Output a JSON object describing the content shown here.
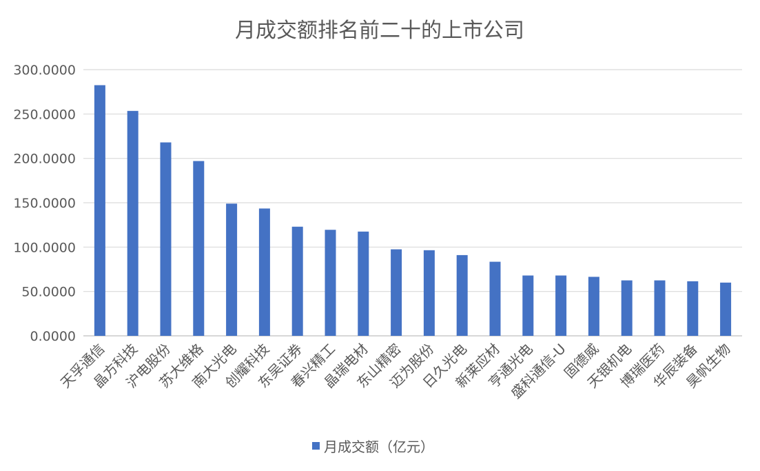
{
  "chart_data": {
    "type": "bar",
    "title": "月成交额排名前二十的上市公司",
    "xlabel": "",
    "ylabel": "",
    "ylim": [
      0,
      300
    ],
    "yticks": [
      "0.0000",
      "50.0000",
      "100.0000",
      "150.0000",
      "200.0000",
      "250.0000",
      "300.0000"
    ],
    "grid": true,
    "legend_position": "bottom",
    "categories": [
      "天孚通信",
      "晶方科技",
      "沪电股份",
      "苏大维格",
      "南大光电",
      "创耀科技",
      "东吴证券",
      "春兴精工",
      "晶瑞电材",
      "东山精密",
      "迈为股份",
      "日久光电",
      "新莱应材",
      "亨通光电",
      "盛科通信-U",
      "固德威",
      "天银机电",
      "博瑞医药",
      "华辰装备",
      "昊帆生物"
    ],
    "series": [
      {
        "name": "月成交额（亿元）",
        "color": "#4472c4",
        "values": [
          282.5,
          253.5,
          218.0,
          197.0,
          149.0,
          143.5,
          123.0,
          119.5,
          117.5,
          97.5,
          96.5,
          91.0,
          83.5,
          68.0,
          68.0,
          66.5,
          62.5,
          62.5,
          61.5,
          60.0
        ]
      }
    ]
  }
}
